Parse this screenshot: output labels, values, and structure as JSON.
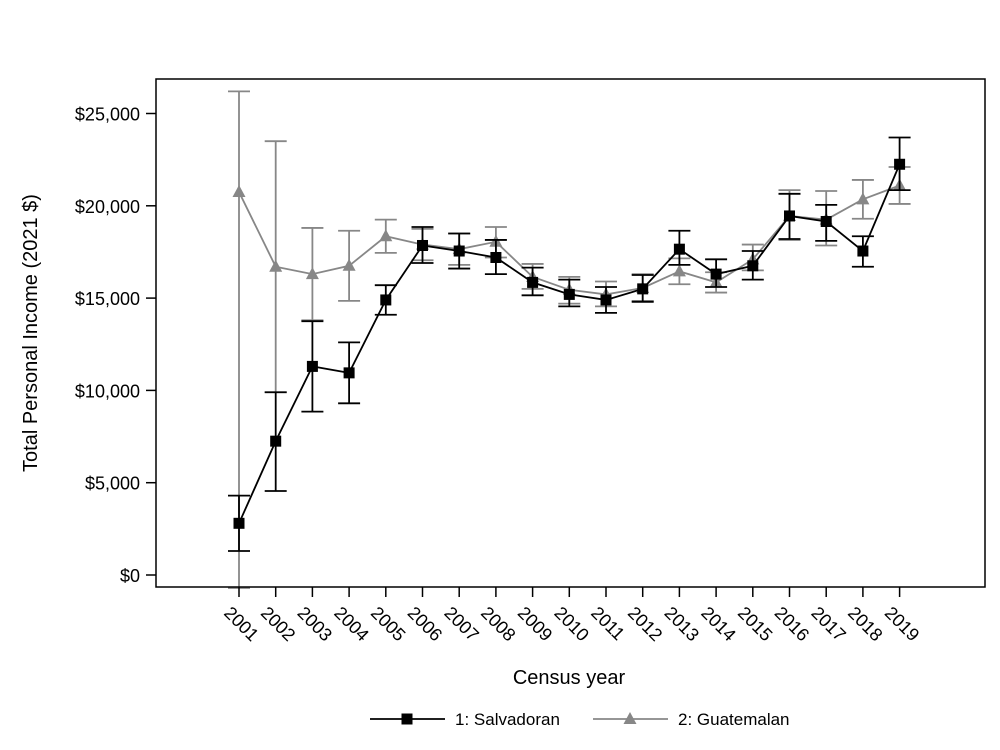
{
  "chart_data": {
    "type": "line",
    "xlabel": "Census year",
    "ylabel": "Total Personal Income (2021 $)",
    "ylim": [
      -700,
      26800
    ],
    "yticks": [
      0,
      5000,
      10000,
      15000,
      20000,
      25000
    ],
    "ytick_labels": [
      "$0",
      "$5,000",
      "$10,000",
      "$15,000",
      "$20,000",
      "$25,000"
    ],
    "categories": [
      "2001",
      "2002",
      "2003",
      "2004",
      "2005",
      "2006",
      "2007",
      "2008",
      "2009",
      "2010",
      "2011",
      "2012",
      "2013",
      "2014",
      "2015",
      "2016",
      "2017",
      "2018",
      "2019"
    ],
    "legend_position": "bottom-center",
    "grid": false,
    "series": [
      {
        "name": "1: Salvadoran",
        "color": "#000000",
        "marker": "square",
        "values": [
          2800,
          7250,
          11300,
          10950,
          14900,
          17850,
          17550,
          17200,
          15850,
          15200,
          14900,
          15500,
          17650,
          16300,
          16750,
          19450,
          19150,
          17550,
          22250
        ],
        "lower": [
          1300,
          4550,
          8850,
          9300,
          14100,
          16900,
          16600,
          16300,
          15150,
          14550,
          14200,
          14800,
          16800,
          15600,
          16000,
          18200,
          18100,
          16700,
          20850
        ],
        "upper": [
          4300,
          9900,
          13750,
          12600,
          15700,
          18850,
          18500,
          18150,
          16650,
          16000,
          15600,
          16250,
          18650,
          17100,
          17550,
          20650,
          20050,
          18350,
          23700
        ]
      },
      {
        "name": "2: Guatemalan",
        "color": "#878787",
        "marker": "triangle",
        "values": [
          20750,
          16700,
          16300,
          16750,
          18350,
          17900,
          17650,
          18050,
          16150,
          15450,
          15200,
          15550,
          16450,
          15850,
          17100,
          19450,
          19250,
          20350,
          21100
        ],
        "lower": [
          -700,
          9900,
          13800,
          14850,
          17450,
          17050,
          16800,
          17200,
          15500,
          14700,
          14550,
          14850,
          15750,
          15300,
          16500,
          18150,
          17850,
          19300,
          20100
        ],
        "upper": [
          26200,
          23500,
          18800,
          18650,
          19250,
          18750,
          18500,
          18850,
          16850,
          16150,
          15900,
          16300,
          17150,
          16400,
          17900,
          20850,
          20800,
          21400,
          22100
        ]
      }
    ]
  }
}
